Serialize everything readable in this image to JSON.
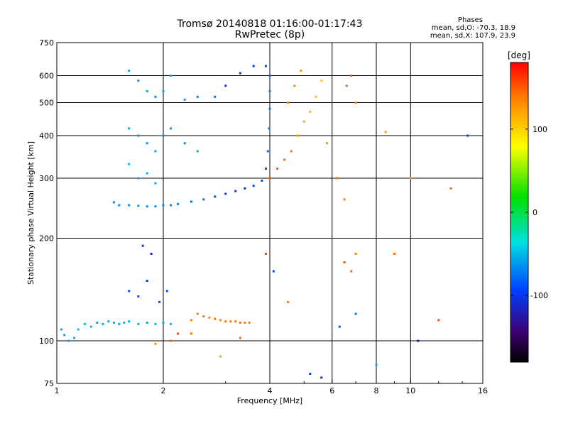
{
  "chart_data": {
    "type": "scatter",
    "title": "Tromsø 20140818 01:16:00-01:17:43",
    "subtitle": "RwPretec (8p)",
    "xlabel": "Frequency [MHz]",
    "ylabel": "Stationary phase Virtual Height [km]",
    "x_scale": "log",
    "y_scale": "log",
    "xlim": [
      1,
      16
    ],
    "ylim": [
      75,
      750
    ],
    "xticks": [
      1,
      2,
      4,
      6,
      8,
      10,
      16
    ],
    "yticks": [
      75,
      100,
      200,
      300,
      400,
      500,
      600,
      750
    ],
    "grid_x": [
      2,
      4,
      6,
      8,
      10
    ],
    "grid_y": [
      100,
      200,
      300,
      400,
      500,
      600
    ],
    "grid": true,
    "colorbar": {
      "label": "[deg]",
      "range": [
        -180,
        180
      ],
      "ticks": [
        100,
        0,
        -100
      ],
      "colormap": "rainbow"
    },
    "phases_label": "Phases",
    "stats": [
      "mean, sd,O: -70.3, 18.9",
      "mean, sd,X: 107.9, 23.9"
    ],
    "points": [
      {
        "x": 1.03,
        "y": 108,
        "v": -60
      },
      {
        "x": 1.05,
        "y": 104,
        "v": -60
      },
      {
        "x": 1.08,
        "y": 100,
        "v": -60
      },
      {
        "x": 1.12,
        "y": 102,
        "v": -55
      },
      {
        "x": 1.15,
        "y": 108,
        "v": -55
      },
      {
        "x": 1.2,
        "y": 112,
        "v": -55
      },
      {
        "x": 1.25,
        "y": 110,
        "v": -55
      },
      {
        "x": 1.3,
        "y": 113,
        "v": -60
      },
      {
        "x": 1.35,
        "y": 112,
        "v": -55
      },
      {
        "x": 1.4,
        "y": 114,
        "v": -60
      },
      {
        "x": 1.45,
        "y": 113,
        "v": -55
      },
      {
        "x": 1.5,
        "y": 112,
        "v": -60
      },
      {
        "x": 1.55,
        "y": 113,
        "v": -55
      },
      {
        "x": 1.6,
        "y": 114,
        "v": -60
      },
      {
        "x": 1.7,
        "y": 112,
        "v": -60
      },
      {
        "x": 1.8,
        "y": 113,
        "v": -60
      },
      {
        "x": 1.9,
        "y": 112,
        "v": -55
      },
      {
        "x": 2.0,
        "y": 113,
        "v": -60
      },
      {
        "x": 2.1,
        "y": 112,
        "v": -55
      },
      {
        "x": 1.6,
        "y": 140,
        "v": -95
      },
      {
        "x": 1.7,
        "y": 135,
        "v": -100
      },
      {
        "x": 1.8,
        "y": 150,
        "v": -105
      },
      {
        "x": 1.85,
        "y": 180,
        "v": -120
      },
      {
        "x": 1.95,
        "y": 130,
        "v": -100
      },
      {
        "x": 2.05,
        "y": 140,
        "v": -90
      },
      {
        "x": 1.75,
        "y": 190,
        "v": -115
      },
      {
        "x": 1.45,
        "y": 255,
        "v": -70
      },
      {
        "x": 1.5,
        "y": 250,
        "v": -70
      },
      {
        "x": 1.6,
        "y": 250,
        "v": -70
      },
      {
        "x": 1.7,
        "y": 249,
        "v": -65
      },
      {
        "x": 1.8,
        "y": 248,
        "v": -70
      },
      {
        "x": 1.9,
        "y": 248,
        "v": -70
      },
      {
        "x": 2.0,
        "y": 250,
        "v": -70
      },
      {
        "x": 2.1,
        "y": 250,
        "v": -70
      },
      {
        "x": 2.2,
        "y": 252,
        "v": -75
      },
      {
        "x": 2.4,
        "y": 256,
        "v": -80
      },
      {
        "x": 2.6,
        "y": 260,
        "v": -85
      },
      {
        "x": 2.8,
        "y": 265,
        "v": -95
      },
      {
        "x": 3.0,
        "y": 270,
        "v": -100
      },
      {
        "x": 3.2,
        "y": 275,
        "v": -105
      },
      {
        "x": 3.4,
        "y": 280,
        "v": -110
      },
      {
        "x": 3.6,
        "y": 285,
        "v": -100
      },
      {
        "x": 3.8,
        "y": 295,
        "v": -95
      },
      {
        "x": 3.9,
        "y": 320,
        "v": -95
      },
      {
        "x": 3.95,
        "y": 360,
        "v": -85
      },
      {
        "x": 3.98,
        "y": 420,
        "v": -80
      },
      {
        "x": 4.0,
        "y": 480,
        "v": -80
      },
      {
        "x": 4.0,
        "y": 540,
        "v": -75
      },
      {
        "x": 4.0,
        "y": 600,
        "v": -85
      },
      {
        "x": 3.9,
        "y": 640,
        "v": -95
      },
      {
        "x": 3.6,
        "y": 640,
        "v": -105
      },
      {
        "x": 3.3,
        "y": 610,
        "v": -110
      },
      {
        "x": 3.0,
        "y": 560,
        "v": -105
      },
      {
        "x": 2.8,
        "y": 520,
        "v": -80
      },
      {
        "x": 2.5,
        "y": 520,
        "v": -70
      },
      {
        "x": 2.3,
        "y": 510,
        "v": -65
      },
      {
        "x": 1.6,
        "y": 620,
        "v": -60
      },
      {
        "x": 1.7,
        "y": 580,
        "v": -65
      },
      {
        "x": 1.8,
        "y": 540,
        "v": -60
      },
      {
        "x": 1.9,
        "y": 520,
        "v": -70
      },
      {
        "x": 2.0,
        "y": 540,
        "v": -60
      },
      {
        "x": 2.1,
        "y": 600,
        "v": -55
      },
      {
        "x": 1.6,
        "y": 420,
        "v": -60
      },
      {
        "x": 1.7,
        "y": 400,
        "v": -70
      },
      {
        "x": 1.8,
        "y": 380,
        "v": -65
      },
      {
        "x": 1.9,
        "y": 360,
        "v": -60
      },
      {
        "x": 2.0,
        "y": 400,
        "v": -70
      },
      {
        "x": 2.1,
        "y": 420,
        "v": -65
      },
      {
        "x": 2.3,
        "y": 380,
        "v": -70
      },
      {
        "x": 2.5,
        "y": 360,
        "v": -60
      },
      {
        "x": 1.6,
        "y": 330,
        "v": -55
      },
      {
        "x": 1.7,
        "y": 300,
        "v": -60
      },
      {
        "x": 1.8,
        "y": 310,
        "v": -55
      },
      {
        "x": 1.9,
        "y": 290,
        "v": -60
      },
      {
        "x": 2.4,
        "y": 115,
        "v": 125
      },
      {
        "x": 2.5,
        "y": 120,
        "v": 130
      },
      {
        "x": 2.6,
        "y": 118,
        "v": 135
      },
      {
        "x": 2.7,
        "y": 117,
        "v": 130
      },
      {
        "x": 2.8,
        "y": 116,
        "v": 140
      },
      {
        "x": 2.9,
        "y": 115,
        "v": 130
      },
      {
        "x": 3.0,
        "y": 114,
        "v": 130
      },
      {
        "x": 3.1,
        "y": 114,
        "v": 135
      },
      {
        "x": 3.2,
        "y": 114,
        "v": 130
      },
      {
        "x": 3.3,
        "y": 113,
        "v": 135
      },
      {
        "x": 3.4,
        "y": 113,
        "v": 130
      },
      {
        "x": 3.5,
        "y": 113,
        "v": 130
      },
      {
        "x": 4.0,
        "y": 300,
        "v": 150
      },
      {
        "x": 4.2,
        "y": 320,
        "v": 150
      },
      {
        "x": 4.4,
        "y": 340,
        "v": 140
      },
      {
        "x": 4.6,
        "y": 360,
        "v": 130
      },
      {
        "x": 4.8,
        "y": 400,
        "v": 120
      },
      {
        "x": 5.0,
        "y": 440,
        "v": 110
      },
      {
        "x": 5.2,
        "y": 470,
        "v": 100
      },
      {
        "x": 5.4,
        "y": 520,
        "v": 90
      },
      {
        "x": 5.6,
        "y": 580,
        "v": 95
      },
      {
        "x": 4.5,
        "y": 500,
        "v": 120
      },
      {
        "x": 4.7,
        "y": 560,
        "v": 130
      },
      {
        "x": 4.9,
        "y": 620,
        "v": 120
      },
      {
        "x": 5.8,
        "y": 380,
        "v": 120
      },
      {
        "x": 6.2,
        "y": 300,
        "v": 140
      },
      {
        "x": 6.5,
        "y": 260,
        "v": 130
      },
      {
        "x": 6.8,
        "y": 600,
        "v": 150
      },
      {
        "x": 6.6,
        "y": 560,
        "v": 140
      },
      {
        "x": 7.0,
        "y": 500,
        "v": 120
      },
      {
        "x": 6.5,
        "y": 170,
        "v": 150
      },
      {
        "x": 6.8,
        "y": 160,
        "v": 140
      },
      {
        "x": 7.0,
        "y": 180,
        "v": 130
      },
      {
        "x": 5.2,
        "y": 80,
        "v": -100
      },
      {
        "x": 5.6,
        "y": 78,
        "v": -110
      },
      {
        "x": 6.3,
        "y": 110,
        "v": -90
      },
      {
        "x": 7.0,
        "y": 120,
        "v": -80
      },
      {
        "x": 8.0,
        "y": 85,
        "v": -60
      },
      {
        "x": 9.0,
        "y": 180,
        "v": 140
      },
      {
        "x": 10.5,
        "y": 100,
        "v": -140
      },
      {
        "x": 12.0,
        "y": 115,
        "v": 150
      },
      {
        "x": 13.0,
        "y": 280,
        "v": 140
      },
      {
        "x": 14.5,
        "y": 400,
        "v": -100
      },
      {
        "x": 8.5,
        "y": 410,
        "v": 120
      },
      {
        "x": 10.0,
        "y": 300,
        "v": 110
      },
      {
        "x": 3.9,
        "y": 180,
        "v": 150
      },
      {
        "x": 4.1,
        "y": 160,
        "v": -100
      },
      {
        "x": 4.5,
        "y": 130,
        "v": 130
      },
      {
        "x": 2.1,
        "y": 100,
        "v": 140
      },
      {
        "x": 1.9,
        "y": 98,
        "v": 120
      },
      {
        "x": 2.2,
        "y": 105,
        "v": 150
      },
      {
        "x": 2.4,
        "y": 105,
        "v": 130
      },
      {
        "x": 2.9,
        "y": 90,
        "v": 110
      },
      {
        "x": 3.3,
        "y": 102,
        "v": 140
      }
    ]
  }
}
